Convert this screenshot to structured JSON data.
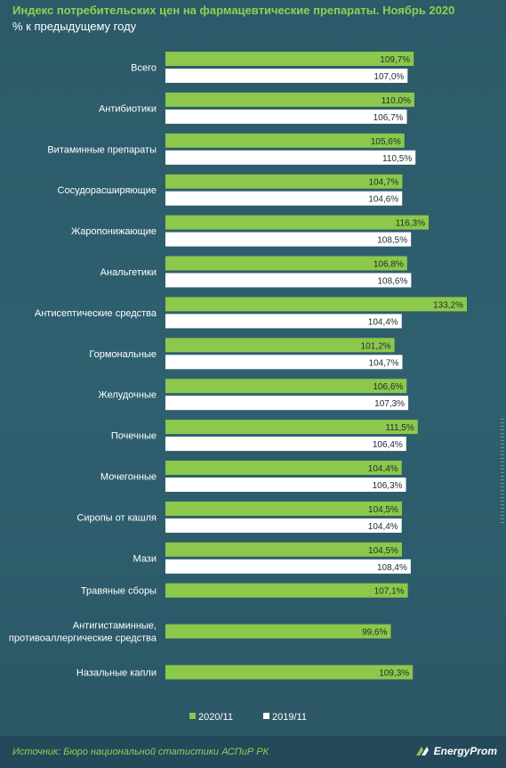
{
  "header": {
    "title": "Индекс потребительских цен на фармацевтические препараты. Ноябрь 2020",
    "subtitle": "% к предыдущему  году"
  },
  "footer": {
    "source": "Источник: Бюро национальной  статистики АСПиР РК",
    "logo_text": "EnergyProm"
  },
  "colors": {
    "series_2020": "#8cc84b",
    "series_2019": "#ffffff",
    "background": "#2f5d6c"
  },
  "chart_data": {
    "type": "bar",
    "orientation": "horizontal",
    "title": "Индекс потребительских цен на фармацевтические препараты. Ноябрь 2020",
    "subtitle": "% к предыдущему  году",
    "categories": [
      [
        "Всего"
      ],
      [
        "Антибиотики"
      ],
      [
        "Витаминные препараты"
      ],
      [
        "Сосудорасширяющие"
      ],
      [
        "Жаропонижающие"
      ],
      [
        "Анальгетики"
      ],
      [
        "Антисептические средства"
      ],
      [
        "Гормональные"
      ],
      [
        "Желудочные"
      ],
      [
        "Почечные"
      ],
      [
        "Мочегонные"
      ],
      [
        "Сиропы от кашля"
      ],
      [
        "Мази"
      ],
      [
        "Травяные сборы"
      ],
      [
        "Антигистаминные,",
        "противоаллергические средства"
      ],
      [
        "Назальные капли"
      ]
    ],
    "series": [
      {
        "name": "2020/11",
        "values": [
          109.7,
          110.0,
          105.6,
          104.7,
          116.3,
          106.8,
          133.2,
          101.2,
          106.6,
          111.5,
          104.4,
          104.5,
          104.5,
          107.1,
          99.6,
          109.3
        ],
        "labels": [
          "109,7%",
          "110,0%",
          "105,6%",
          "104,7%",
          "116,3%",
          "106,8%",
          "133,2%",
          "101,2%",
          "106,6%",
          "111,5%",
          "104,4%",
          "104,5%",
          "104,5%",
          "107,1%",
          "99,6%",
          "109,3%"
        ]
      },
      {
        "name": "2019/11",
        "values": [
          107.0,
          106.7,
          110.5,
          104.6,
          108.5,
          108.6,
          104.4,
          104.7,
          107.3,
          106.4,
          106.3,
          104.4,
          108.4,
          null,
          null,
          null
        ],
        "labels": [
          "107,0%",
          "106,7%",
          "110,5%",
          "104,6%",
          "108,5%",
          "108,6%",
          "104,4%",
          "104,7%",
          "107,3%",
          "106,4%",
          "106,3%",
          "104,4%",
          "108,4%",
          null,
          null,
          null
        ]
      }
    ],
    "legend": {
      "placement": "bottom-center",
      "entries": [
        "2020/11",
        "2019/11"
      ]
    },
    "grid": false
  }
}
